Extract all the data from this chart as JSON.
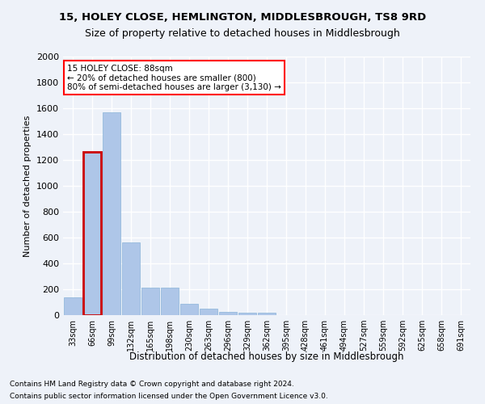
{
  "title1": "15, HOLEY CLOSE, HEMLINGTON, MIDDLESBROUGH, TS8 9RD",
  "title2": "Size of property relative to detached houses in Middlesbrough",
  "xlabel": "Distribution of detached houses by size in Middlesbrough",
  "ylabel": "Number of detached properties",
  "footnote1": "Contains HM Land Registry data © Crown copyright and database right 2024.",
  "footnote2": "Contains public sector information licensed under the Open Government Licence v3.0.",
  "annotation_title": "15 HOLEY CLOSE: 88sqm",
  "annotation_line2": "← 20% of detached houses are smaller (800)",
  "annotation_line3": "80% of semi-detached houses are larger (3,130) →",
  "bar_color": "#aec6e8",
  "highlight_color": "#cc0000",
  "highlight_bar_index": 1,
  "bar_values": [
    140,
    1265,
    1570,
    560,
    215,
    215,
    90,
    50,
    25,
    20,
    20,
    0,
    0,
    0,
    0,
    0,
    0,
    0,
    0,
    0,
    0
  ],
  "categories": [
    "33sqm",
    "66sqm",
    "99sqm",
    "132sqm",
    "165sqm",
    "198sqm",
    "230sqm",
    "263sqm",
    "296sqm",
    "329sqm",
    "362sqm",
    "395sqm",
    "428sqm",
    "461sqm",
    "494sqm",
    "527sqm",
    "559sqm",
    "592sqm",
    "625sqm",
    "658sqm",
    "691sqm"
  ],
  "ylim": [
    0,
    2000
  ],
  "yticks": [
    0,
    200,
    400,
    600,
    800,
    1000,
    1200,
    1400,
    1600,
    1800,
    2000
  ],
  "background_color": "#eef2f9",
  "plot_bg_color": "#eef2f9",
  "grid_color": "#ffffff"
}
